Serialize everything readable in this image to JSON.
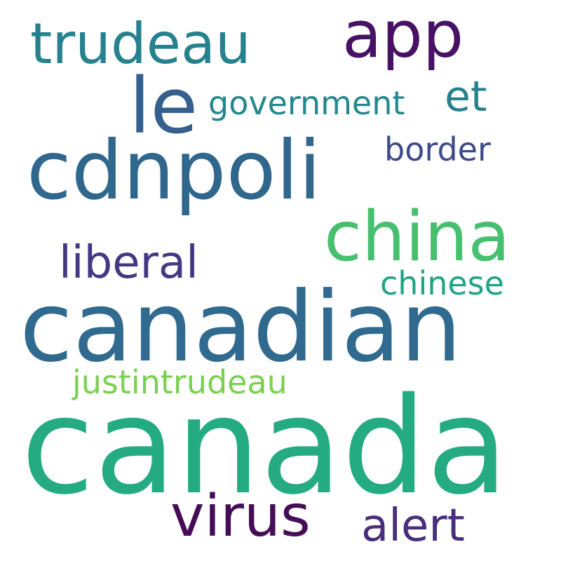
{
  "word_cloud": {
    "background": "#ffffff",
    "words": [
      {
        "id": "canada",
        "text": "canada",
        "color": "#25ab82"
      },
      {
        "id": "canadian",
        "text": "canadian",
        "color": "#306a8e"
      },
      {
        "id": "cdnpoli",
        "text": "cdnpoli",
        "color": "#30678d"
      },
      {
        "id": "china",
        "text": "china",
        "color": "#46c06f"
      },
      {
        "id": "app",
        "text": "app",
        "color": "#471164"
      },
      {
        "id": "trudeau",
        "text": "trudeau",
        "color": "#26818e"
      },
      {
        "id": "le",
        "text": "le",
        "color": "#355f8d"
      },
      {
        "id": "virus",
        "text": "virus",
        "color": "#450d57"
      },
      {
        "id": "liberal",
        "text": "liberal",
        "color": "#453882"
      },
      {
        "id": "alert",
        "text": "alert",
        "color": "#472f7d"
      },
      {
        "id": "government",
        "text": "government",
        "color": "#23888e"
      },
      {
        "id": "et",
        "text": "et",
        "color": "#27808e"
      },
      {
        "id": "border",
        "text": "border",
        "color": "#3e4a89"
      },
      {
        "id": "chinese",
        "text": "chinese",
        "color": "#20a386"
      },
      {
        "id": "justintrudeau",
        "text": "justintrudeau",
        "color": "#7ad151"
      }
    ]
  }
}
